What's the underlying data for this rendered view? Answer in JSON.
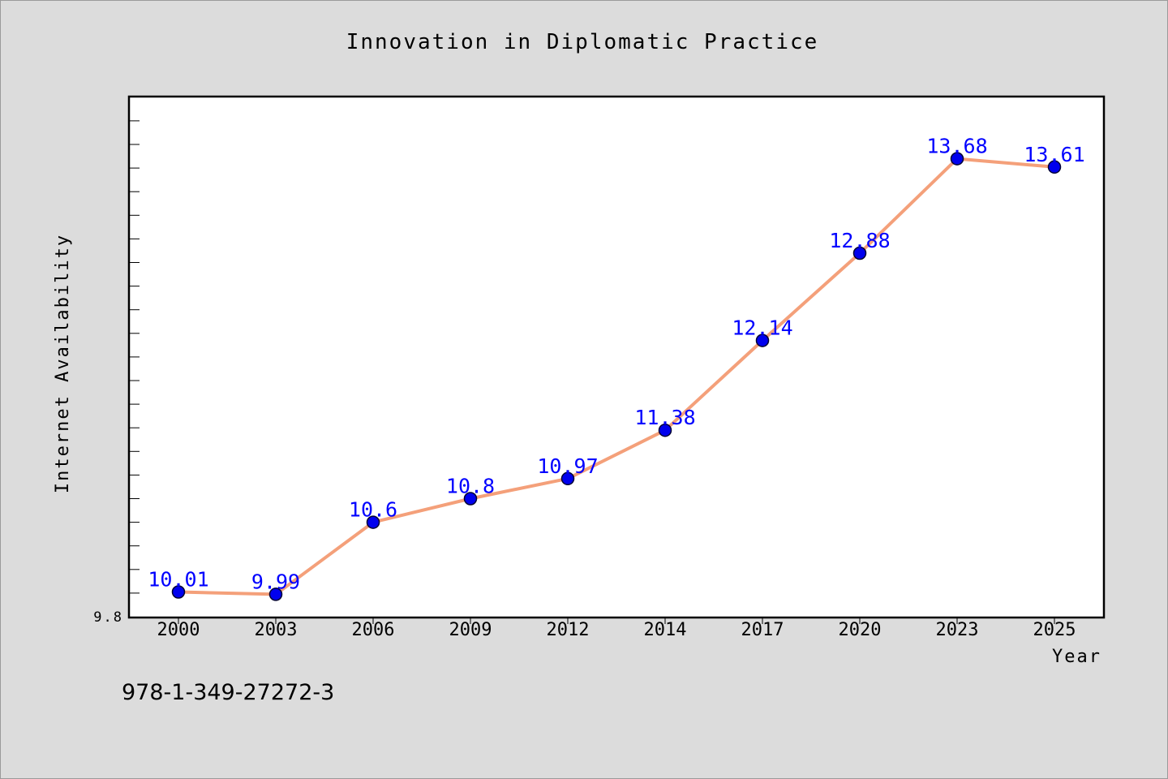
{
  "chart_data": {
    "type": "line",
    "title": "Innovation in Diplomatic Practice",
    "xlabel": "Year",
    "ylabel": "Internet Availability",
    "categories": [
      "2000",
      "2003",
      "2006",
      "2009",
      "2012",
      "2014",
      "2017",
      "2020",
      "2023",
      "2025"
    ],
    "series": [
      {
        "values": [
          10.01,
          9.99,
          10.6,
          10.8,
          10.97,
          11.38,
          12.14,
          12.88,
          13.68,
          13.61
        ]
      }
    ],
    "data_labels": [
      "10.01",
      "9.99",
      "10.6",
      "10.8",
      "10.97",
      "11.38",
      "12.14",
      "12.88",
      "13.68",
      "13.61"
    ],
    "ylim": [
      9.8,
      14.2
    ],
    "yticks_labeled": [
      "9.8"
    ],
    "grid": false,
    "legend": "none",
    "colors": {
      "line": "#f4a07a",
      "marker": "#0000ee",
      "marker_edge": "#000033",
      "data_label": "#0000ff",
      "background": "#dcdcdc",
      "plot_background": "#ffffff"
    }
  },
  "footer": {
    "isbn": "978-1-349-27272-3"
  }
}
